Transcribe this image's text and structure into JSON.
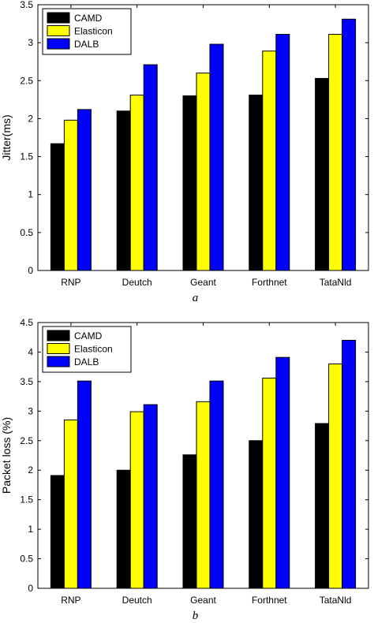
{
  "chart_data": [
    {
      "type": "bar",
      "caption": "a",
      "ylabel": "Jitter(ms)",
      "categories": [
        "RNP",
        "Deutch",
        "Geant",
        "Forthnet",
        "TataNld"
      ],
      "ylim": [
        0,
        3.5
      ],
      "yticks": [
        "0",
        "0.5",
        "1",
        "1.5",
        "2",
        "2.5",
        "3",
        "3.5"
      ],
      "legend_position": "top-left",
      "grid": false,
      "series": [
        {
          "name": "CAMD",
          "color": "#000000",
          "values": [
            1.67,
            2.1,
            2.3,
            2.31,
            2.53
          ]
        },
        {
          "name": "Elasticon",
          "color": "#ffff00",
          "values": [
            1.98,
            2.31,
            2.6,
            2.89,
            3.11
          ]
        },
        {
          "name": "DALB",
          "color": "#0000ff",
          "values": [
            2.12,
            2.71,
            2.98,
            3.11,
            3.31
          ]
        }
      ]
    },
    {
      "type": "bar",
      "caption": "b",
      "ylabel": "Packet loss (%)",
      "categories": [
        "RNP",
        "Deutch",
        "Geant",
        "Forthnet",
        "TataNld"
      ],
      "ylim": [
        0,
        4.5
      ],
      "yticks": [
        "0",
        "0.5",
        "1",
        "1.5",
        "2",
        "2.5",
        "3",
        "3.5",
        "4",
        "4.5"
      ],
      "legend_position": "top-left",
      "grid": false,
      "series": [
        {
          "name": "CAMD",
          "color": "#000000",
          "values": [
            1.91,
            2.0,
            2.26,
            2.5,
            2.79
          ]
        },
        {
          "name": "Elasticon",
          "color": "#ffff00",
          "values": [
            2.85,
            2.99,
            3.16,
            3.56,
            3.8
          ]
        },
        {
          "name": "DALB",
          "color": "#0000ff",
          "values": [
            3.51,
            3.11,
            3.51,
            3.91,
            4.2
          ]
        }
      ]
    }
  ]
}
